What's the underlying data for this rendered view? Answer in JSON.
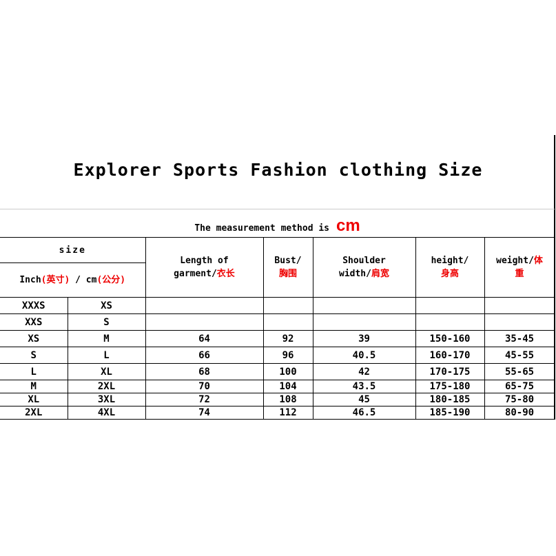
{
  "title": "Explorer Sports Fashion clothing Size",
  "method": {
    "label": "The measurement method is",
    "unit": "cm"
  },
  "header": {
    "size": "size",
    "inch": "Inch",
    "inch_cn": "(英寸)",
    "sep": " / cm",
    "cm_cn": "(公分)",
    "length": "Length of",
    "length2": "garment/",
    "length_cn": "衣长",
    "bust": "Bust/",
    "bust_cn": "胸围",
    "shoulder": "Shoulder",
    "shoulder2": "width/",
    "shoulder_cn": "肩宽",
    "height": "height/",
    "height_cn": "身高",
    "weight": "weight/",
    "weight_cn1": "体",
    "weight_cn2": "重"
  },
  "rows": [
    [
      "XXXS",
      "XS",
      "",
      "",
      "",
      "",
      ""
    ],
    [
      "XXS",
      "S",
      "",
      "",
      "",
      "",
      ""
    ],
    [
      "XS",
      "M",
      "64",
      "92",
      "39",
      "150-160",
      "35-45"
    ],
    [
      "S",
      "L",
      "66",
      "96",
      "40.5",
      "160-170",
      "45-55"
    ],
    [
      "L",
      "XL",
      "68",
      "100",
      "42",
      "170-175",
      "55-65"
    ],
    [
      "M",
      "2XL",
      "70",
      "104",
      "43.5",
      "175-180",
      "65-75"
    ],
    [
      "XL",
      "3XL",
      "72",
      "108",
      "45",
      "180-185",
      "75-80"
    ],
    [
      "2XL",
      "4XL",
      "74",
      "112",
      "46.5",
      "185-190",
      "80-90"
    ]
  ],
  "colors": {
    "accent": "#ee0000"
  }
}
